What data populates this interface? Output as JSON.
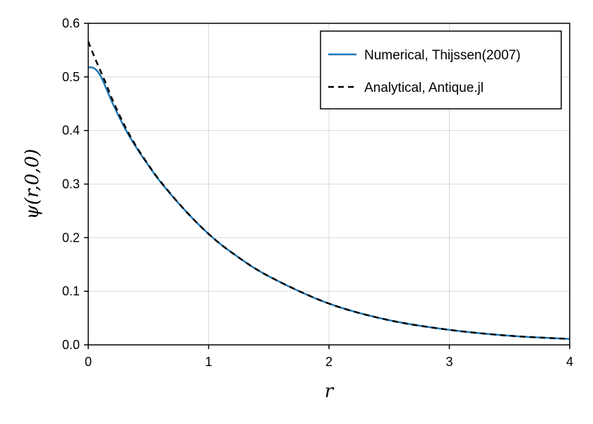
{
  "chart_data": {
    "type": "line",
    "xlabel": "r",
    "ylabel": "ψ(r,0,0)",
    "xlim": [
      0,
      4
    ],
    "ylim": [
      0,
      0.6
    ],
    "x_ticks": [
      "0",
      "1",
      "2",
      "3",
      "4"
    ],
    "y_ticks": [
      "0.0",
      "0.1",
      "0.2",
      "0.3",
      "0.4",
      "0.5",
      "0.6"
    ],
    "grid": true,
    "legend_position": "top-right",
    "series": [
      {
        "name": "Numerical, Thijssen(2007)",
        "style": "solid",
        "color": "#1f77b4",
        "x": [
          0,
          0.05,
          0.1,
          0.15,
          0.2,
          0.3,
          0.4,
          0.5,
          0.6,
          0.8,
          1.0,
          1.2,
          1.5,
          2.0,
          2.5,
          3.0,
          3.5,
          4.0
        ],
        "y": [
          0.518,
          0.516,
          0.503,
          0.478,
          0.452,
          0.406,
          0.368,
          0.335,
          0.304,
          0.252,
          0.207,
          0.171,
          0.128,
          0.077,
          0.046,
          0.028,
          0.017,
          0.011
        ]
      },
      {
        "name": "Analytical, Antique.jl",
        "style": "dashed",
        "color": "#000000",
        "x": [
          0,
          0.05,
          0.1,
          0.15,
          0.2,
          0.3,
          0.4,
          0.5,
          0.6,
          0.8,
          1.0,
          1.2,
          1.5,
          2.0,
          2.5,
          3.0,
          3.5,
          4.0
        ],
        "y": [
          0.566,
          0.538,
          0.512,
          0.486,
          0.458,
          0.41,
          0.37,
          0.336,
          0.305,
          0.252,
          0.207,
          0.171,
          0.128,
          0.077,
          0.046,
          0.028,
          0.017,
          0.011
        ]
      }
    ]
  }
}
